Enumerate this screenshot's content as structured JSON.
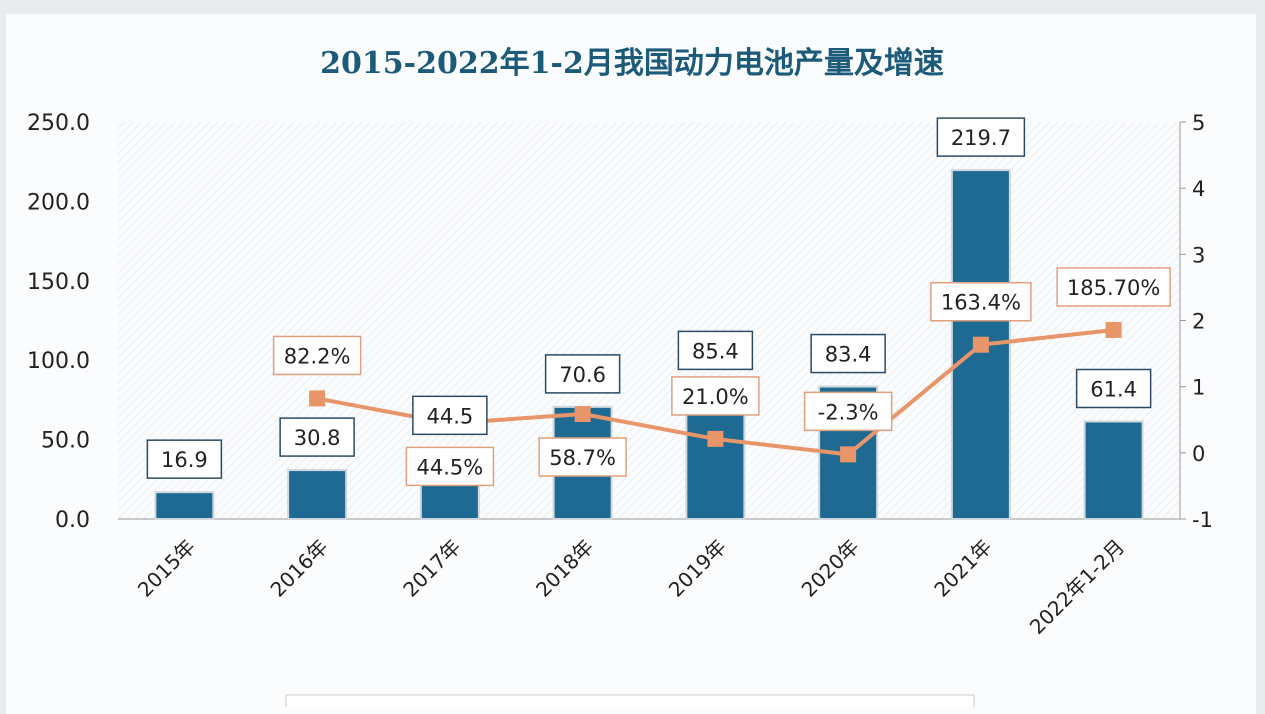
{
  "chart_data": {
    "type": "bar+line",
    "title": "2015-2022年1-2月我国动力电池产量及增速",
    "categories": [
      "2015年",
      "2016年",
      "2017年",
      "2018年",
      "2019年",
      "2020年",
      "2021年",
      "2022年1-2月"
    ],
    "series": [
      {
        "type": "bar",
        "axis": "left",
        "values": [
          16.9,
          30.8,
          44.5,
          70.6,
          85.4,
          83.4,
          219.7,
          61.4
        ],
        "labels": [
          "16.9",
          "30.8",
          "44.5",
          "70.6",
          "85.4",
          "83.4",
          "219.7",
          "61.4"
        ],
        "color": "#1f6a93"
      },
      {
        "type": "line",
        "axis": "right",
        "values": [
          null,
          0.822,
          0.445,
          0.587,
          0.21,
          -0.023,
          1.634,
          1.857
        ],
        "labels": [
          "",
          "82.2%",
          "44.5%",
          "58.7%",
          "21.0%",
          "-2.3%",
          "163.4%",
          "185.70%"
        ],
        "color": "#e8956a"
      }
    ],
    "y_left": {
      "range": [
        0,
        250
      ],
      "ticks": [
        "0.0",
        "50.0",
        "100.0",
        "150.0",
        "200.0",
        "250.0"
      ]
    },
    "y_right": {
      "range": [
        -1,
        5
      ],
      "ticks": [
        "-1",
        "0",
        "1",
        "2",
        "3",
        "4",
        "5"
      ]
    },
    "grid": false,
    "legend_position": "bottom",
    "colors": {
      "title": "#1c5a7a",
      "plot_hatch": "#d9dde2"
    }
  }
}
